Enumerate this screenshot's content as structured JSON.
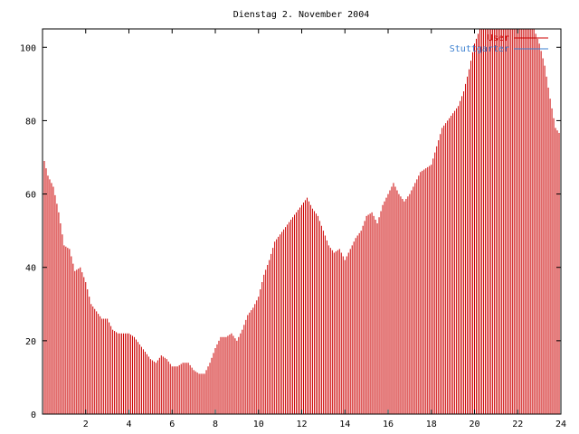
{
  "chart_data": {
    "type": "bar",
    "title": "Dienstag 2. November 2004",
    "xlabel": "",
    "ylabel": "",
    "xlim": [
      0,
      24
    ],
    "ylim": [
      0,
      105
    ],
    "xticks": [
      2,
      4,
      6,
      8,
      10,
      12,
      14,
      16,
      18,
      20,
      22,
      24
    ],
    "yticks": [
      0,
      20,
      40,
      60,
      80,
      100
    ],
    "grid": false,
    "legend_position": "top-right",
    "colors": {
      "User": "#cc0000",
      "Stuttgarter": "#3a7fd0",
      "axis": "#000000"
    },
    "series": [
      {
        "name": "User",
        "points": [
          [
            0.0,
            71
          ],
          [
            0.25,
            65
          ],
          [
            0.5,
            62
          ],
          [
            0.75,
            55
          ],
          [
            1.0,
            46
          ],
          [
            1.25,
            45
          ],
          [
            1.5,
            39
          ],
          [
            1.75,
            40
          ],
          [
            2.0,
            36
          ],
          [
            2.25,
            30
          ],
          [
            2.5,
            28
          ],
          [
            2.75,
            26
          ],
          [
            3.0,
            26
          ],
          [
            3.25,
            23
          ],
          [
            3.5,
            22
          ],
          [
            3.75,
            22
          ],
          [
            4.0,
            22
          ],
          [
            4.25,
            21
          ],
          [
            4.5,
            19
          ],
          [
            4.75,
            17
          ],
          [
            5.0,
            15
          ],
          [
            5.25,
            14
          ],
          [
            5.5,
            16
          ],
          [
            5.75,
            15
          ],
          [
            6.0,
            13
          ],
          [
            6.25,
            13
          ],
          [
            6.5,
            14
          ],
          [
            6.75,
            14
          ],
          [
            7.0,
            12
          ],
          [
            7.25,
            11
          ],
          [
            7.5,
            11
          ],
          [
            7.75,
            14
          ],
          [
            8.0,
            18
          ],
          [
            8.25,
            21
          ],
          [
            8.5,
            21
          ],
          [
            8.75,
            22
          ],
          [
            9.0,
            20
          ],
          [
            9.25,
            23
          ],
          [
            9.5,
            27
          ],
          [
            9.75,
            29
          ],
          [
            10.0,
            32
          ],
          [
            10.25,
            38
          ],
          [
            10.5,
            42
          ],
          [
            10.75,
            47
          ],
          [
            11.0,
            49
          ],
          [
            11.25,
            51
          ],
          [
            11.5,
            53
          ],
          [
            11.75,
            55
          ],
          [
            12.0,
            57
          ],
          [
            12.25,
            59
          ],
          [
            12.5,
            56
          ],
          [
            12.75,
            54
          ],
          [
            13.0,
            50
          ],
          [
            13.25,
            46
          ],
          [
            13.5,
            44
          ],
          [
            13.75,
            45
          ],
          [
            14.0,
            42
          ],
          [
            14.25,
            45
          ],
          [
            14.5,
            48
          ],
          [
            14.75,
            50
          ],
          [
            15.0,
            54
          ],
          [
            15.25,
            55
          ],
          [
            15.5,
            52
          ],
          [
            15.75,
            57
          ],
          [
            16.0,
            60
          ],
          [
            16.25,
            63
          ],
          [
            16.5,
            60
          ],
          [
            16.75,
            58
          ],
          [
            17.0,
            60
          ],
          [
            17.25,
            63
          ],
          [
            17.5,
            66
          ],
          [
            17.75,
            67
          ],
          [
            18.0,
            68
          ],
          [
            18.25,
            73
          ],
          [
            18.5,
            78
          ],
          [
            18.75,
            80
          ],
          [
            19.0,
            82
          ],
          [
            19.25,
            84
          ],
          [
            19.5,
            88
          ],
          [
            19.75,
            94
          ],
          [
            20.0,
            101
          ],
          [
            20.25,
            105
          ],
          [
            20.5,
            105
          ],
          [
            20.75,
            105
          ],
          [
            21.0,
            105
          ],
          [
            21.25,
            105
          ],
          [
            21.5,
            105
          ],
          [
            21.75,
            105
          ],
          [
            22.0,
            105
          ],
          [
            22.25,
            105
          ],
          [
            22.5,
            105
          ],
          [
            22.75,
            105
          ],
          [
            23.0,
            101
          ],
          [
            23.25,
            95
          ],
          [
            23.5,
            86
          ],
          [
            23.75,
            78
          ],
          [
            24.0,
            76
          ]
        ]
      },
      {
        "name": "Stuttgarter",
        "points": []
      }
    ]
  }
}
